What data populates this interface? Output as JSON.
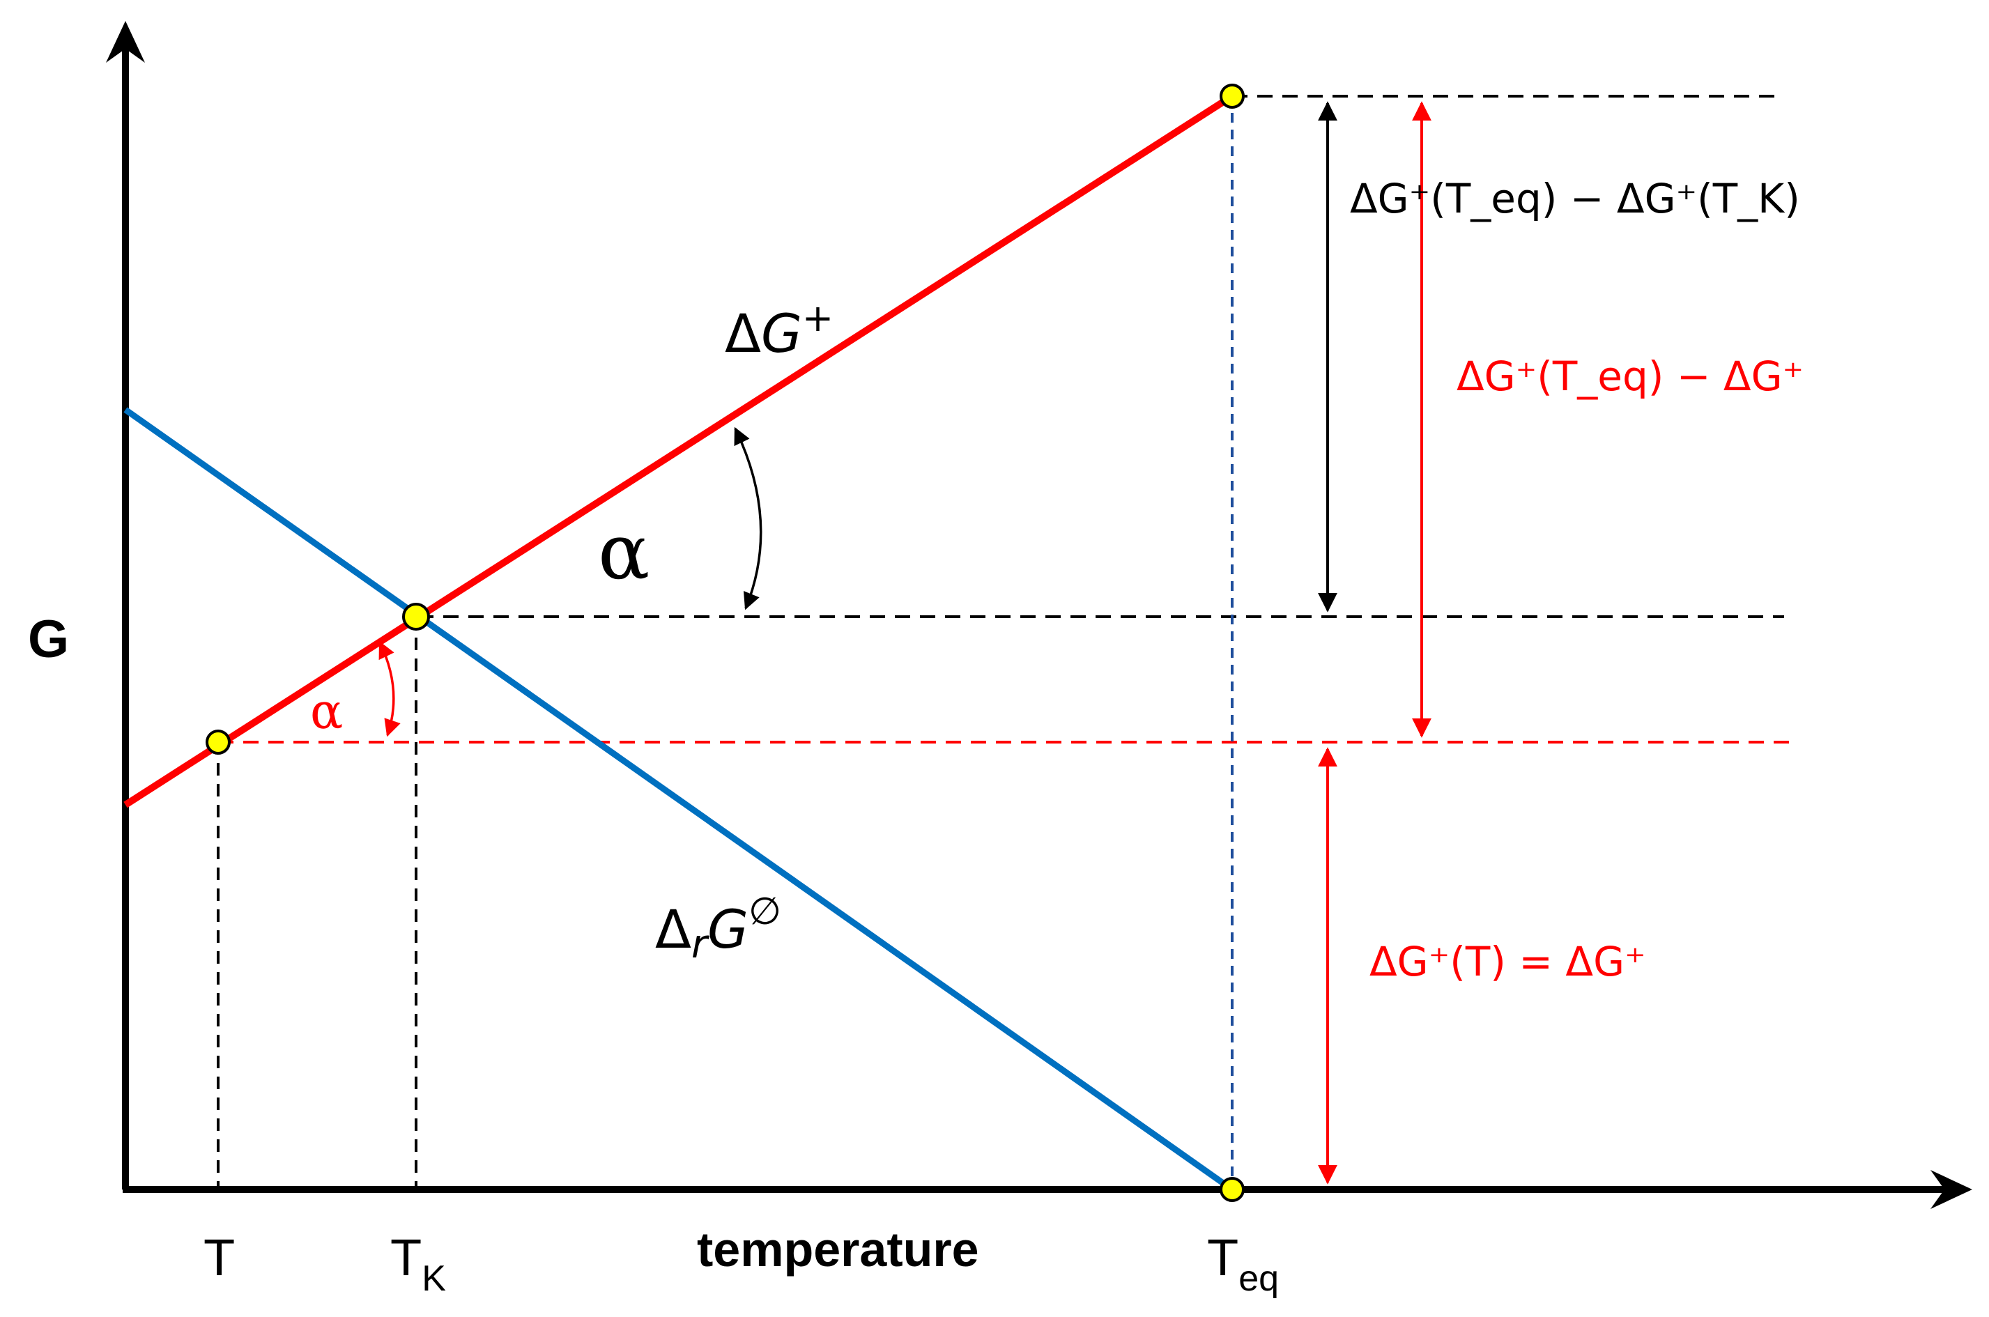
{
  "axes": {
    "y_label": "G",
    "x_label": "temperature"
  },
  "ticks": {
    "T": "T",
    "TK_main": "T",
    "TK_sub": "K",
    "Teq_main": "T",
    "Teq_sub": "eq"
  },
  "curves": {
    "red_label": {
      "delta": "Δ",
      "G": "G",
      "sup": "+"
    },
    "blue_label": {
      "delta": "Δ",
      "r": "r",
      "G": "G",
      "sup": "∅"
    }
  },
  "angles": {
    "black": "α",
    "red": "α"
  },
  "annotations": {
    "black_diff": "ΔG⁺(T_eq) − ΔG⁺(T_K)",
    "red_diff": "ΔG⁺(T_eq) − ΔG⁺",
    "red_eq": "ΔG⁺(T) = ΔG⁺"
  },
  "colors": {
    "red_line": "#ff0000",
    "blue_line": "#0070c0",
    "point_fill": "#ffff00",
    "axis": "#000000",
    "guide_blue": "#1f4e9c"
  }
}
